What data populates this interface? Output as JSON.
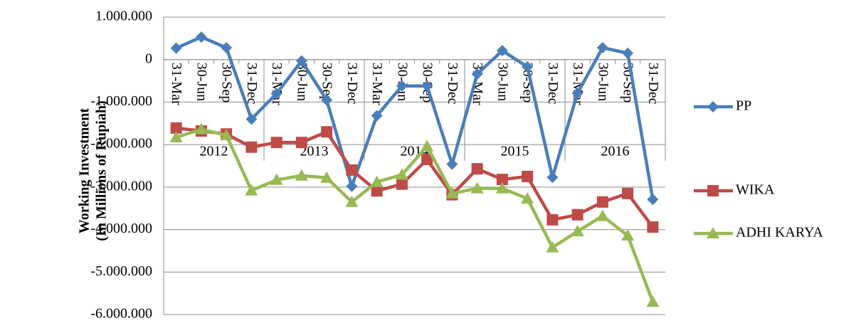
{
  "chart_data": {
    "type": "line",
    "ylabel": [
      "Working Investment",
      "(In Millions of Rupiah)"
    ],
    "categories": [
      "31-Mar",
      "30-Jun",
      "30-Sep",
      "31-Dec",
      "31-Mar",
      "30-Jun",
      "30-Sep",
      "31-Dec",
      "31-Mar",
      "30-Jun",
      "30-Sep",
      "31-Dec",
      "31-Mar",
      "30-Jun",
      "30-Sep",
      "31-Dec",
      "31-Mar",
      "30-Jun",
      "30-Sep",
      "31-Dec"
    ],
    "category_groups": [
      "2012",
      "2013",
      "2014",
      "2015",
      "2016"
    ],
    "ylim": [
      -6000000,
      1000000
    ],
    "yticks": [
      {
        "value": 1000000,
        "label": "1.000.000"
      },
      0,
      {
        "value": -1000000,
        "label": "-1.000.000"
      },
      {
        "value": -2000000,
        "label": "-2.000.000"
      },
      {
        "value": -3000000,
        "label": "-3.000.000"
      },
      {
        "value": -4000000,
        "label": "-4.000.000"
      },
      {
        "value": -5000000,
        "label": "-5.000.000"
      },
      {
        "value": -6000000,
        "label": "-6.000.000"
      }
    ],
    "grid": true,
    "legend": "right",
    "series": [
      {
        "name": "PP",
        "color": "#4a7ebb",
        "marker": "diamond",
        "values": [
          270000,
          530000,
          280000,
          -1400000,
          -800000,
          -30000,
          -950000,
          -2980000,
          -1320000,
          -620000,
          -620000,
          -2460000,
          -340000,
          210000,
          -170000,
          -2770000,
          -790000,
          280000,
          150000,
          -3290000
        ]
      },
      {
        "name": "WIKA",
        "color": "#be4b48",
        "marker": "square",
        "values": [
          -1610000,
          -1680000,
          -1750000,
          -2060000,
          -1950000,
          -1950000,
          -1700000,
          -2600000,
          -3090000,
          -2930000,
          -2350000,
          -3180000,
          -2570000,
          -2820000,
          -2750000,
          -3770000,
          -3650000,
          -3350000,
          -3150000,
          -3940000
        ]
      },
      {
        "name": "ADHI KARYA",
        "color": "#98b954",
        "marker": "triangle",
        "values": [
          -1830000,
          -1640000,
          -1780000,
          -3080000,
          -2830000,
          -2730000,
          -2780000,
          -3350000,
          -2880000,
          -2710000,
          -2040000,
          -3150000,
          -3030000,
          -3030000,
          -3270000,
          -4420000,
          -4040000,
          -3680000,
          -4140000,
          -5700000
        ]
      }
    ]
  }
}
